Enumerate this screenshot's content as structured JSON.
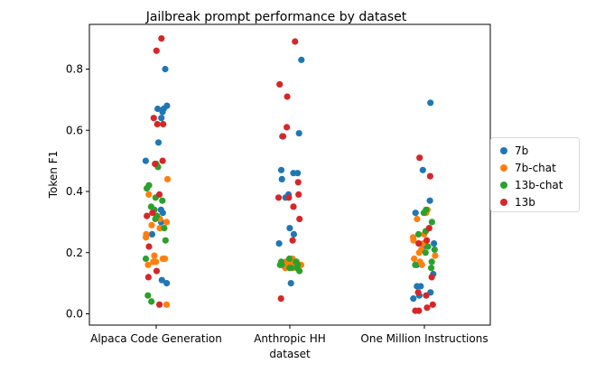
{
  "chart_data": {
    "type": "scatter",
    "title": "Jailbreak prompt performance by dataset",
    "xlabel": "dataset",
    "ylabel": "Token F1",
    "categories": [
      "Alpaca Code Generation",
      "Anthropic HH",
      "One Million Instructions"
    ],
    "ylim": [
      -0.04,
      0.95
    ],
    "yticks": [
      "0.0",
      "0.2",
      "0.4",
      "0.6",
      "0.8"
    ],
    "legend_position": "center-right outside",
    "series": [
      {
        "name": "7b",
        "color": "#1f77b4",
        "points": [
          {
            "cat": 0,
            "y": 0.8
          },
          {
            "cat": 0,
            "y": 0.67
          },
          {
            "cat": 0,
            "y": 0.68
          },
          {
            "cat": 0,
            "y": 0.66
          },
          {
            "cat": 0,
            "y": 0.67
          },
          {
            "cat": 0,
            "y": 0.64
          },
          {
            "cat": 0,
            "y": 0.56
          },
          {
            "cat": 0,
            "y": 0.5
          },
          {
            "cat": 0,
            "y": 0.34
          },
          {
            "cat": 0,
            "y": 0.33
          },
          {
            "cat": 0,
            "y": 0.3
          },
          {
            "cat": 0,
            "y": 0.26
          },
          {
            "cat": 0,
            "y": 0.11
          },
          {
            "cat": 0,
            "y": 0.1
          },
          {
            "cat": 1,
            "y": 0.83
          },
          {
            "cat": 1,
            "y": 0.59
          },
          {
            "cat": 1,
            "y": 0.58
          },
          {
            "cat": 1,
            "y": 0.47
          },
          {
            "cat": 1,
            "y": 0.46
          },
          {
            "cat": 1,
            "y": 0.46
          },
          {
            "cat": 1,
            "y": 0.44
          },
          {
            "cat": 1,
            "y": 0.39
          },
          {
            "cat": 1,
            "y": 0.38
          },
          {
            "cat": 1,
            "y": 0.28
          },
          {
            "cat": 1,
            "y": 0.26
          },
          {
            "cat": 1,
            "y": 0.23
          },
          {
            "cat": 1,
            "y": 0.1
          },
          {
            "cat": 2,
            "y": 0.69
          },
          {
            "cat": 2,
            "y": 0.47
          },
          {
            "cat": 2,
            "y": 0.37
          },
          {
            "cat": 2,
            "y": 0.33
          },
          {
            "cat": 2,
            "y": 0.23
          },
          {
            "cat": 2,
            "y": 0.22
          },
          {
            "cat": 2,
            "y": 0.16
          },
          {
            "cat": 2,
            "y": 0.13
          },
          {
            "cat": 2,
            "y": 0.09
          },
          {
            "cat": 2,
            "y": 0.09
          },
          {
            "cat": 2,
            "y": 0.07
          },
          {
            "cat": 2,
            "y": 0.06
          },
          {
            "cat": 2,
            "y": 0.05
          }
        ]
      },
      {
        "name": "7b-chat",
        "color": "#ff7f0e",
        "points": [
          {
            "cat": 0,
            "y": 0.44
          },
          {
            "cat": 0,
            "y": 0.39
          },
          {
            "cat": 0,
            "y": 0.31
          },
          {
            "cat": 0,
            "y": 0.3
          },
          {
            "cat": 0,
            "y": 0.29
          },
          {
            "cat": 0,
            "y": 0.28
          },
          {
            "cat": 0,
            "y": 0.26
          },
          {
            "cat": 0,
            "y": 0.25
          },
          {
            "cat": 0,
            "y": 0.19
          },
          {
            "cat": 0,
            "y": 0.18
          },
          {
            "cat": 0,
            "y": 0.18
          },
          {
            "cat": 0,
            "y": 0.17
          },
          {
            "cat": 0,
            "y": 0.17
          },
          {
            "cat": 0,
            "y": 0.16
          },
          {
            "cat": 0,
            "y": 0.03
          },
          {
            "cat": 1,
            "y": 0.18
          },
          {
            "cat": 1,
            "y": 0.17
          },
          {
            "cat": 1,
            "y": 0.17
          },
          {
            "cat": 1,
            "y": 0.17
          },
          {
            "cat": 1,
            "y": 0.17
          },
          {
            "cat": 1,
            "y": 0.16
          },
          {
            "cat": 1,
            "y": 0.16
          },
          {
            "cat": 1,
            "y": 0.16
          },
          {
            "cat": 1,
            "y": 0.16
          },
          {
            "cat": 1,
            "y": 0.15
          },
          {
            "cat": 1,
            "y": 0.15
          },
          {
            "cat": 2,
            "y": 0.34
          },
          {
            "cat": 2,
            "y": 0.33
          },
          {
            "cat": 2,
            "y": 0.31
          },
          {
            "cat": 2,
            "y": 0.26
          },
          {
            "cat": 2,
            "y": 0.25
          },
          {
            "cat": 2,
            "y": 0.24
          },
          {
            "cat": 2,
            "y": 0.23
          },
          {
            "cat": 2,
            "y": 0.21
          },
          {
            "cat": 2,
            "y": 0.2
          },
          {
            "cat": 2,
            "y": 0.19
          },
          {
            "cat": 2,
            "y": 0.18
          },
          {
            "cat": 2,
            "y": 0.17
          },
          {
            "cat": 2,
            "y": 0.16
          }
        ]
      },
      {
        "name": "13b-chat",
        "color": "#2ca02c",
        "points": [
          {
            "cat": 0,
            "y": 0.49
          },
          {
            "cat": 0,
            "y": 0.48
          },
          {
            "cat": 0,
            "y": 0.42
          },
          {
            "cat": 0,
            "y": 0.41
          },
          {
            "cat": 0,
            "y": 0.38
          },
          {
            "cat": 0,
            "y": 0.37
          },
          {
            "cat": 0,
            "y": 0.35
          },
          {
            "cat": 0,
            "y": 0.34
          },
          {
            "cat": 0,
            "y": 0.32
          },
          {
            "cat": 0,
            "y": 0.31
          },
          {
            "cat": 0,
            "y": 0.28
          },
          {
            "cat": 0,
            "y": 0.24
          },
          {
            "cat": 0,
            "y": 0.18
          },
          {
            "cat": 0,
            "y": 0.06
          },
          {
            "cat": 0,
            "y": 0.04
          },
          {
            "cat": 1,
            "y": 0.18
          },
          {
            "cat": 1,
            "y": 0.17
          },
          {
            "cat": 1,
            "y": 0.17
          },
          {
            "cat": 1,
            "y": 0.16
          },
          {
            "cat": 1,
            "y": 0.16
          },
          {
            "cat": 1,
            "y": 0.16
          },
          {
            "cat": 1,
            "y": 0.15
          },
          {
            "cat": 1,
            "y": 0.15
          },
          {
            "cat": 1,
            "y": 0.15
          },
          {
            "cat": 1,
            "y": 0.14
          },
          {
            "cat": 2,
            "y": 0.34
          },
          {
            "cat": 2,
            "y": 0.33
          },
          {
            "cat": 2,
            "y": 0.3
          },
          {
            "cat": 2,
            "y": 0.27
          },
          {
            "cat": 2,
            "y": 0.26
          },
          {
            "cat": 2,
            "y": 0.22
          },
          {
            "cat": 2,
            "y": 0.21
          },
          {
            "cat": 2,
            "y": 0.2
          },
          {
            "cat": 2,
            "y": 0.17
          },
          {
            "cat": 2,
            "y": 0.16
          },
          {
            "cat": 2,
            "y": 0.15
          }
        ]
      },
      {
        "name": "13b",
        "color": "#d62728",
        "points": [
          {
            "cat": 0,
            "y": 0.9
          },
          {
            "cat": 0,
            "y": 0.86
          },
          {
            "cat": 0,
            "y": 0.64
          },
          {
            "cat": 0,
            "y": 0.62
          },
          {
            "cat": 0,
            "y": 0.62
          },
          {
            "cat": 0,
            "y": 0.5
          },
          {
            "cat": 0,
            "y": 0.49
          },
          {
            "cat": 0,
            "y": 0.39
          },
          {
            "cat": 0,
            "y": 0.33
          },
          {
            "cat": 0,
            "y": 0.32
          },
          {
            "cat": 0,
            "y": 0.22
          },
          {
            "cat": 0,
            "y": 0.14
          },
          {
            "cat": 0,
            "y": 0.12
          },
          {
            "cat": 0,
            "y": 0.03
          },
          {
            "cat": 1,
            "y": 0.89
          },
          {
            "cat": 1,
            "y": 0.75
          },
          {
            "cat": 1,
            "y": 0.71
          },
          {
            "cat": 1,
            "y": 0.61
          },
          {
            "cat": 1,
            "y": 0.58
          },
          {
            "cat": 1,
            "y": 0.43
          },
          {
            "cat": 1,
            "y": 0.39
          },
          {
            "cat": 1,
            "y": 0.38
          },
          {
            "cat": 1,
            "y": 0.38
          },
          {
            "cat": 1,
            "y": 0.35
          },
          {
            "cat": 1,
            "y": 0.31
          },
          {
            "cat": 1,
            "y": 0.24
          },
          {
            "cat": 1,
            "y": 0.05
          },
          {
            "cat": 2,
            "y": 0.51
          },
          {
            "cat": 2,
            "y": 0.45
          },
          {
            "cat": 2,
            "y": 0.28
          },
          {
            "cat": 2,
            "y": 0.24
          },
          {
            "cat": 2,
            "y": 0.23
          },
          {
            "cat": 2,
            "y": 0.12
          },
          {
            "cat": 2,
            "y": 0.07
          },
          {
            "cat": 2,
            "y": 0.06
          },
          {
            "cat": 2,
            "y": 0.03
          },
          {
            "cat": 2,
            "y": 0.02
          },
          {
            "cat": 2,
            "y": 0.01
          },
          {
            "cat": 2,
            "y": 0.01
          }
        ]
      }
    ]
  }
}
